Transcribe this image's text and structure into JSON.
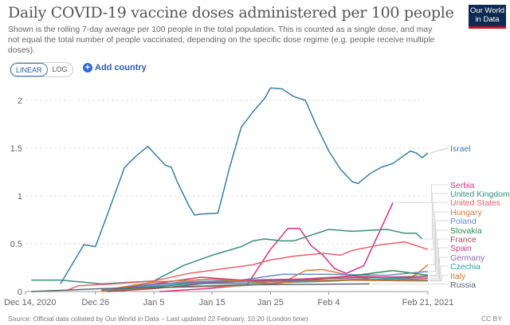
{
  "header": {
    "title": "Daily COVID-19 vaccine doses administered per 100 people",
    "subtitle": "Shown is the rolling 7-day average per 100 people in the total population. This is counted as a single dose, and may not equal the total number of people vaccinated, depending on the specific dose regime (e.g. people receive multiple doses).",
    "logo_text": "Our World in Data"
  },
  "controls": {
    "linear": "LINEAR",
    "log": "LOG",
    "add_country": "Add country",
    "add_icon": "plus-circle-icon"
  },
  "footer": {
    "source": "Source: Official data collated by Our World in Data – Last updated 22 February, 10:20 (London time)",
    "license": "CC BY"
  },
  "chart_data": {
    "type": "line",
    "title": "Daily COVID-19 vaccine doses administered per 100 people",
    "xlim": [
      "2020-12-14",
      "2021-02-21"
    ],
    "ylim": [
      0,
      2.2
    ],
    "grid": "horizontal dotted",
    "legend": "right, end-of-line labels",
    "x_ticks": [
      {
        "date": "2020-12-14",
        "label": "Dec 14, 2020"
      },
      {
        "date": "2020-12-26",
        "label": "Dec 26"
      },
      {
        "date": "2021-01-05",
        "label": "Jan 5"
      },
      {
        "date": "2021-01-15",
        "label": "Jan 15"
      },
      {
        "date": "2021-01-25",
        "label": "Jan 25"
      },
      {
        "date": "2021-02-04",
        "label": "Feb 4"
      },
      {
        "date": "2021-02-21",
        "label": "Feb 21, 2021"
      }
    ],
    "y_ticks": [
      {
        "v": 0,
        "label": "0"
      },
      {
        "v": 0.5,
        "label": "0.5"
      },
      {
        "v": 1,
        "label": "1"
      },
      {
        "v": 1.5,
        "label": "1.5"
      },
      {
        "v": 2,
        "label": "2"
      }
    ],
    "series": [
      {
        "name": "Israel",
        "color": "#3a7ca5",
        "points": [
          [
            "2020-12-20",
            0.08
          ],
          [
            "2020-12-24",
            0.49
          ],
          [
            "2020-12-26",
            0.47
          ],
          [
            "2020-12-28",
            0.8
          ],
          [
            "2020-12-31",
            1.3
          ],
          [
            "2021-01-02",
            1.42
          ],
          [
            "2021-01-04",
            1.52
          ],
          [
            "2021-01-05",
            1.45
          ],
          [
            "2021-01-07",
            1.32
          ],
          [
            "2021-01-08",
            1.3
          ],
          [
            "2021-01-09",
            1.15
          ],
          [
            "2021-01-11",
            0.9
          ],
          [
            "2021-01-12",
            0.8
          ],
          [
            "2021-01-13",
            0.81
          ],
          [
            "2021-01-16",
            0.82
          ],
          [
            "2021-01-18",
            1.3
          ],
          [
            "2021-01-20",
            1.72
          ],
          [
            "2021-01-22",
            1.88
          ],
          [
            "2021-01-24",
            2.02
          ],
          [
            "2021-01-25",
            2.13
          ],
          [
            "2021-01-27",
            2.12
          ],
          [
            "2021-01-29",
            2.04
          ],
          [
            "2021-01-31",
            2.0
          ],
          [
            "2021-02-02",
            1.72
          ],
          [
            "2021-02-04",
            1.47
          ],
          [
            "2021-02-06",
            1.28
          ],
          [
            "2021-02-08",
            1.15
          ],
          [
            "2021-02-09",
            1.13
          ],
          [
            "2021-02-11",
            1.23
          ],
          [
            "2021-02-13",
            1.3
          ],
          [
            "2021-02-15",
            1.34
          ],
          [
            "2021-02-18",
            1.47
          ],
          [
            "2021-02-19",
            1.45
          ],
          [
            "2021-02-20",
            1.4
          ],
          [
            "2021-02-21",
            1.45
          ]
        ]
      },
      {
        "name": "Serbia",
        "color": "#d6307f",
        "points": [
          [
            "2021-01-06",
            0.0
          ],
          [
            "2021-01-14",
            0.03
          ],
          [
            "2021-01-21",
            0.07
          ],
          [
            "2021-01-25",
            0.44
          ],
          [
            "2021-01-28",
            0.66
          ],
          [
            "2021-01-30",
            0.66
          ],
          [
            "2021-02-01",
            0.48
          ],
          [
            "2021-02-03",
            0.38
          ],
          [
            "2021-02-05",
            0.24
          ],
          [
            "2021-02-07",
            0.19
          ],
          [
            "2021-02-10",
            0.27
          ],
          [
            "2021-02-15",
            0.93
          ]
        ]
      },
      {
        "name": "United Kingdom",
        "color": "#3a8e79",
        "points": [
          [
            "2020-12-15",
            0.12
          ],
          [
            "2020-12-20",
            0.12
          ],
          [
            "2020-12-27",
            0.08
          ],
          [
            "2021-01-05",
            0.11
          ],
          [
            "2021-01-10",
            0.27
          ],
          [
            "2021-01-15",
            0.38
          ],
          [
            "2021-01-20",
            0.47
          ],
          [
            "2021-01-22",
            0.53
          ],
          [
            "2021-01-24",
            0.55
          ],
          [
            "2021-01-27",
            0.53
          ],
          [
            "2021-01-29",
            0.53
          ],
          [
            "2021-02-01",
            0.59
          ],
          [
            "2021-02-04",
            0.65
          ],
          [
            "2021-02-08",
            0.63
          ],
          [
            "2021-02-14",
            0.65
          ],
          [
            "2021-02-17",
            0.61
          ],
          [
            "2021-02-19",
            0.61
          ],
          [
            "2021-02-20",
            0.55
          ]
        ]
      },
      {
        "name": "United States",
        "color": "#e5606a",
        "points": [
          [
            "2020-12-21",
            0.01
          ],
          [
            "2020-12-23",
            0.06
          ],
          [
            "2020-12-29",
            0.08
          ],
          [
            "2021-01-05",
            0.11
          ],
          [
            "2021-01-11",
            0.19
          ],
          [
            "2021-01-17",
            0.24
          ],
          [
            "2021-01-22",
            0.28
          ],
          [
            "2021-01-25",
            0.33
          ],
          [
            "2021-01-29",
            0.37
          ],
          [
            "2021-02-03",
            0.4
          ],
          [
            "2021-02-06",
            0.38
          ],
          [
            "2021-02-08",
            0.43
          ],
          [
            "2021-02-13",
            0.49
          ],
          [
            "2021-02-17",
            0.52
          ],
          [
            "2021-02-21",
            0.44
          ]
        ]
      },
      {
        "name": "Hungary",
        "color": "#d97b3c",
        "points": [
          [
            "2020-12-27",
            0.0
          ],
          [
            "2021-01-05",
            0.04
          ],
          [
            "2021-01-20",
            0.06
          ],
          [
            "2021-01-27",
            0.09
          ],
          [
            "2021-01-31",
            0.22
          ],
          [
            "2021-02-03",
            0.23
          ],
          [
            "2021-02-06",
            0.19
          ],
          [
            "2021-02-11",
            0.13
          ],
          [
            "2021-02-17",
            0.12
          ],
          [
            "2021-02-19",
            0.18
          ],
          [
            "2021-02-21",
            0.28
          ]
        ]
      },
      {
        "name": "Poland",
        "color": "#6a8ac4",
        "points": [
          [
            "2020-12-28",
            0.02
          ],
          [
            "2021-01-10",
            0.1
          ],
          [
            "2021-01-20",
            0.12
          ],
          [
            "2021-01-27",
            0.18
          ],
          [
            "2021-02-04",
            0.18
          ],
          [
            "2021-02-14",
            0.17
          ],
          [
            "2021-02-21",
            0.21
          ]
        ]
      },
      {
        "name": "Slovakia",
        "color": "#2e8b57",
        "points": [
          [
            "2020-12-27",
            0.01
          ],
          [
            "2021-01-05",
            0.05
          ],
          [
            "2021-01-15",
            0.1
          ],
          [
            "2021-02-01",
            0.12
          ],
          [
            "2021-02-10",
            0.18
          ],
          [
            "2021-02-15",
            0.22
          ],
          [
            "2021-02-21",
            0.17
          ]
        ]
      },
      {
        "name": "France",
        "color": "#a0505e",
        "points": [
          [
            "2020-12-28",
            0.0
          ],
          [
            "2021-01-05",
            0.03
          ],
          [
            "2021-01-15",
            0.09
          ],
          [
            "2021-01-25",
            0.12
          ],
          [
            "2021-02-05",
            0.14
          ],
          [
            "2021-02-21",
            0.16
          ]
        ]
      },
      {
        "name": "Spain",
        "color": "#d53c82",
        "points": [
          [
            "2020-12-28",
            0.02
          ],
          [
            "2021-01-05",
            0.08
          ],
          [
            "2021-01-13",
            0.15
          ],
          [
            "2021-01-20",
            0.12
          ],
          [
            "2021-01-30",
            0.13
          ],
          [
            "2021-02-08",
            0.16
          ],
          [
            "2021-02-21",
            0.14
          ]
        ]
      },
      {
        "name": "Germany",
        "color": "#8e6bb5",
        "points": [
          [
            "2020-12-27",
            0.02
          ],
          [
            "2021-01-05",
            0.08
          ],
          [
            "2021-01-15",
            0.1
          ],
          [
            "2021-01-30",
            0.11
          ],
          [
            "2021-02-10",
            0.13
          ],
          [
            "2021-02-21",
            0.12
          ]
        ]
      },
      {
        "name": "Czechia",
        "color": "#2ca3a0",
        "points": [
          [
            "2020-12-27",
            0.01
          ],
          [
            "2021-01-10",
            0.08
          ],
          [
            "2021-01-25",
            0.09
          ],
          [
            "2021-02-05",
            0.11
          ],
          [
            "2021-02-15",
            0.14
          ],
          [
            "2021-02-21",
            0.12
          ]
        ]
      },
      {
        "name": "Italy",
        "color": "#c9772d",
        "points": [
          [
            "2020-12-27",
            0.01
          ],
          [
            "2021-01-05",
            0.1
          ],
          [
            "2021-01-15",
            0.13
          ],
          [
            "2021-01-25",
            0.09
          ],
          [
            "2021-02-05",
            0.12
          ],
          [
            "2021-02-21",
            0.11
          ]
        ]
      },
      {
        "name": "Russia",
        "color": "#5f6670",
        "points": [
          [
            "2020-12-15",
            0.0
          ],
          [
            "2020-12-27",
            0.03
          ],
          [
            "2021-01-10",
            0.05
          ],
          [
            "2021-01-20",
            0.07
          ],
          [
            "2021-02-11",
            0.08
          ]
        ]
      }
    ]
  }
}
